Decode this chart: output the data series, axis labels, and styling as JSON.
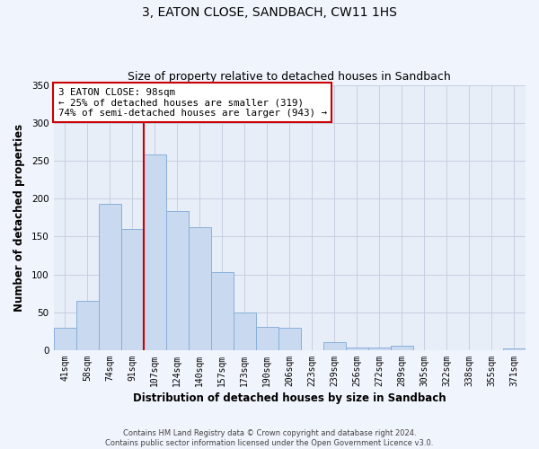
{
  "title": "3, EATON CLOSE, SANDBACH, CW11 1HS",
  "subtitle": "Size of property relative to detached houses in Sandbach",
  "xlabel": "Distribution of detached houses by size in Sandbach",
  "ylabel": "Number of detached properties",
  "bar_labels": [
    "41sqm",
    "58sqm",
    "74sqm",
    "91sqm",
    "107sqm",
    "124sqm",
    "140sqm",
    "157sqm",
    "173sqm",
    "190sqm",
    "206sqm",
    "223sqm",
    "239sqm",
    "256sqm",
    "272sqm",
    "289sqm",
    "305sqm",
    "322sqm",
    "338sqm",
    "355sqm",
    "371sqm"
  ],
  "bar_values": [
    30,
    65,
    193,
    160,
    258,
    184,
    162,
    103,
    50,
    31,
    30,
    0,
    11,
    3,
    3,
    6,
    0,
    0,
    0,
    0,
    2
  ],
  "bar_color": "#c8d9f0",
  "bar_edge_color": "#8ab0d8",
  "grid_color": "#c8cfe0",
  "background_color": "#f0f4fc",
  "plot_bg_color": "#e8eef8",
  "vline_x_index": 3,
  "vline_color": "#cc0000",
  "annotation_title": "3 EATON CLOSE: 98sqm",
  "annotation_line1": "← 25% of detached houses are smaller (319)",
  "annotation_line2": "74% of semi-detached houses are larger (943) →",
  "annotation_box_facecolor": "#ffffff",
  "annotation_box_edgecolor": "#cc0000",
  "footnote1": "Contains HM Land Registry data © Crown copyright and database right 2024.",
  "footnote2": "Contains public sector information licensed under the Open Government Licence v3.0.",
  "ylim": [
    0,
    350
  ],
  "yticks": [
    0,
    50,
    100,
    150,
    200,
    250,
    300,
    350
  ],
  "title_fontsize": 10,
  "subtitle_fontsize": 9
}
